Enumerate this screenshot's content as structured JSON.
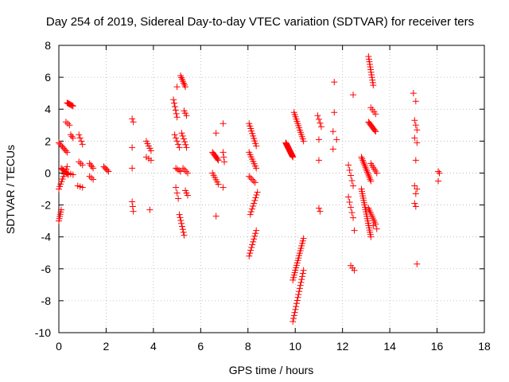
{
  "chart_data": {
    "type": "scatter",
    "title": "Day 254 of 2019, Sidereal Day-to-day VTEC variation (SDTVAR) for receiver ters",
    "xlabel": "GPS time / hours",
    "ylabel": "SDTVAR / TECUs",
    "xlim": [
      0,
      18
    ],
    "ylim": [
      -10,
      8
    ],
    "xticks": [
      0,
      2,
      4,
      6,
      8,
      10,
      12,
      14,
      16,
      18
    ],
    "yticks": [
      -10,
      -8,
      -6,
      -4,
      -2,
      0,
      2,
      4,
      6,
      8
    ],
    "grid": true,
    "marker": "plus",
    "series": [
      {
        "name": "SDTVAR",
        "color": "#ff0000",
        "segments": [
          {
            "x": [
              0.0,
              0.1
            ],
            "y": [
              -3.0,
              -2.3
            ],
            "n": 6
          },
          {
            "x": [
              0.0,
              0.35
            ],
            "y": [
              -1.0,
              0.4
            ],
            "n": 10
          },
          {
            "x": [
              0.0,
              0.35
            ],
            "y": [
              1.9,
              1.3
            ],
            "n": 8
          },
          {
            "x": [
              0.1,
              0.4
            ],
            "y": [
              0.3,
              -0.1
            ],
            "n": 8
          },
          {
            "x": [
              0.3,
              0.45
            ],
            "y": [
              3.2,
              3.0
            ],
            "n": 3
          },
          {
            "x": [
              0.35,
              0.6
            ],
            "y": [
              4.4,
              4.2
            ],
            "n": 8
          },
          {
            "x": [
              0.5,
              0.6
            ],
            "y": [
              2.4,
              2.2
            ],
            "n": 3
          },
          {
            "x": [
              0.4,
              0.6
            ],
            "y": [
              0.0,
              -0.1
            ],
            "n": 3
          },
          {
            "x": [
              0.8,
              1.0
            ],
            "y": [
              -0.8,
              -0.9
            ],
            "n": 3
          },
          {
            "x": [
              0.85,
              1.0
            ],
            "y": [
              0.7,
              0.5
            ],
            "n": 3
          },
          {
            "x": [
              0.85,
              1.0
            ],
            "y": [
              2.4,
              1.8
            ],
            "n": 4
          },
          {
            "x": [
              1.3,
              1.45
            ],
            "y": [
              0.6,
              0.3
            ],
            "n": 4
          },
          {
            "x": [
              1.3,
              1.45
            ],
            "y": [
              -0.2,
              -0.4
            ],
            "n": 3
          },
          {
            "x": [
              1.9,
              2.1
            ],
            "y": [
              0.4,
              0.1
            ],
            "n": 5
          },
          {
            "x": [
              3.1,
              3.15
            ],
            "y": [
              3.4,
              3.2
            ],
            "n": 2
          },
          {
            "x": [
              3.1,
              3.1
            ],
            "y": [
              1.6,
              1.6
            ],
            "n": 1
          },
          {
            "x": [
              3.1,
              3.1
            ],
            "y": [
              0.3,
              0.3
            ],
            "n": 1
          },
          {
            "x": [
              3.1,
              3.15
            ],
            "y": [
              -1.8,
              -2.4
            ],
            "n": 3
          },
          {
            "x": [
              3.7,
              3.9
            ],
            "y": [
              2.0,
              1.4
            ],
            "n": 5
          },
          {
            "x": [
              3.7,
              3.9
            ],
            "y": [
              1.0,
              0.8
            ],
            "n": 3
          },
          {
            "x": [
              3.85,
              3.85
            ],
            "y": [
              -2.3,
              -2.3
            ],
            "n": 1
          },
          {
            "x": [
              4.85,
              5.0
            ],
            "y": [
              4.6,
              3.5
            ],
            "n": 6
          },
          {
            "x": [
              4.9,
              5.1
            ],
            "y": [
              2.4,
              1.6
            ],
            "n": 5
          },
          {
            "x": [
              4.95,
              5.15
            ],
            "y": [
              0.3,
              0.1
            ],
            "n": 4
          },
          {
            "x": [
              4.95,
              5.05
            ],
            "y": [
              -0.9,
              -1.6
            ],
            "n": 3
          },
          {
            "x": [
              5.0,
              5.0
            ],
            "y": [
              5.4,
              5.4
            ],
            "n": 1
          },
          {
            "x": [
              5.15,
              5.35
            ],
            "y": [
              6.1,
              5.4
            ],
            "n": 7
          },
          {
            "x": [
              5.2,
              5.4
            ],
            "y": [
              2.5,
              1.6
            ],
            "n": 6
          },
          {
            "x": [
              5.25,
              5.45
            ],
            "y": [
              0.3,
              0.0
            ],
            "n": 4
          },
          {
            "x": [
              5.3,
              5.4
            ],
            "y": [
              3.9,
              3.6
            ],
            "n": 3
          },
          {
            "x": [
              5.1,
              5.3
            ],
            "y": [
              -2.6,
              -3.9
            ],
            "n": 8
          },
          {
            "x": [
              5.35,
              5.45
            ],
            "y": [
              -1.1,
              -1.4
            ],
            "n": 3
          },
          {
            "x": [
              6.5,
              6.75
            ],
            "y": [
              1.3,
              0.8
            ],
            "n": 8
          },
          {
            "x": [
              6.5,
              6.75
            ],
            "y": [
              0.0,
              -0.7
            ],
            "n": 6
          },
          {
            "x": [
              6.65,
              6.65
            ],
            "y": [
              2.5,
              2.5
            ],
            "n": 1
          },
          {
            "x": [
              6.65,
              6.65
            ],
            "y": [
              -2.7,
              -2.7
            ],
            "n": 1
          },
          {
            "x": [
              6.95,
              7.0
            ],
            "y": [
              3.1,
              3.1
            ],
            "n": 1
          },
          {
            "x": [
              6.95,
              7.0
            ],
            "y": [
              1.3,
              0.7
            ],
            "n": 3
          },
          {
            "x": [
              6.95,
              6.95
            ],
            "y": [
              -0.9,
              -0.9
            ],
            "n": 1
          },
          {
            "x": [
              8.05,
              8.35
            ],
            "y": [
              3.1,
              1.7
            ],
            "n": 10
          },
          {
            "x": [
              8.05,
              8.35
            ],
            "y": [
              1.3,
              0.3
            ],
            "n": 8
          },
          {
            "x": [
              8.05,
              8.3
            ],
            "y": [
              -0.2,
              -0.6
            ],
            "n": 5
          },
          {
            "x": [
              8.1,
              8.4
            ],
            "y": [
              -2.6,
              -1.2
            ],
            "n": 9
          },
          {
            "x": [
              8.05,
              8.35
            ],
            "y": [
              -5.2,
              -3.6
            ],
            "n": 10
          },
          {
            "x": [
              9.6,
              9.9
            ],
            "y": [
              1.9,
              1.0
            ],
            "n": 25
          },
          {
            "x": [
              9.95,
              10.35
            ],
            "y": [
              3.8,
              2.0
            ],
            "n": 14
          },
          {
            "x": [
              9.9,
              10.35
            ],
            "y": [
              -6.7,
              -4.1
            ],
            "n": 18
          },
          {
            "x": [
              9.9,
              10.35
            ],
            "y": [
              -9.3,
              -6.1
            ],
            "n": 18
          },
          {
            "x": [
              10.95,
              11.1
            ],
            "y": [
              3.6,
              2.9
            ],
            "n": 4
          },
          {
            "x": [
              11.0,
              11.05
            ],
            "y": [
              2.1,
              2.1
            ],
            "n": 1
          },
          {
            "x": [
              11.0,
              11.05
            ],
            "y": [
              0.8,
              0.8
            ],
            "n": 1
          },
          {
            "x": [
              11.0,
              11.05
            ],
            "y": [
              -2.2,
              -2.4
            ],
            "n": 2
          },
          {
            "x": [
              11.65,
              11.7
            ],
            "y": [
              5.7,
              5.7
            ],
            "n": 1
          },
          {
            "x": [
              11.65,
              11.7
            ],
            "y": [
              3.8,
              3.8
            ],
            "n": 1
          },
          {
            "x": [
              11.6,
              11.75
            ],
            "y": [
              2.6,
              2.1
            ],
            "n": 2
          },
          {
            "x": [
              11.6,
              11.75
            ],
            "y": [
              1.5,
              1.5
            ],
            "n": 1
          },
          {
            "x": [
              12.25,
              12.45
            ],
            "y": [
              0.5,
              -0.8
            ],
            "n": 5
          },
          {
            "x": [
              12.25,
              12.45
            ],
            "y": [
              -1.5,
              -2.8
            ],
            "n": 5
          },
          {
            "x": [
              12.35,
              12.5
            ],
            "y": [
              -5.8,
              -6.1
            ],
            "n": 3
          },
          {
            "x": [
              12.45,
              12.5
            ],
            "y": [
              4.9,
              4.9
            ],
            "n": 1
          },
          {
            "x": [
              12.5,
              12.55
            ],
            "y": [
              -3.6,
              -3.6
            ],
            "n": 1
          },
          {
            "x": [
              12.8,
              13.2
            ],
            "y": [
              1.0,
              -0.5
            ],
            "n": 15
          },
          {
            "x": [
              12.8,
              13.2
            ],
            "y": [
              -1.0,
              -4.0
            ],
            "n": 22
          },
          {
            "x": [
              13.1,
              13.3
            ],
            "y": [
              7.3,
              5.5
            ],
            "n": 12
          },
          {
            "x": [
              13.1,
              13.4
            ],
            "y": [
              3.2,
              2.6
            ],
            "n": 10
          },
          {
            "x": [
              13.2,
              13.4
            ],
            "y": [
              4.1,
              3.7
            ],
            "n": 4
          },
          {
            "x": [
              13.1,
              13.4
            ],
            "y": [
              -2.2,
              -3.2
            ],
            "n": 9
          },
          {
            "x": [
              13.2,
              13.45
            ],
            "y": [
              0.6,
              0.0
            ],
            "n": 6
          },
          {
            "x": [
              13.3,
              13.45
            ],
            "y": [
              -3.3,
              -3.5
            ],
            "n": 2
          },
          {
            "x": [
              15.0,
              15.1
            ],
            "y": [
              5.0,
              4.5
            ],
            "n": 2
          },
          {
            "x": [
              15.05,
              15.15
            ],
            "y": [
              3.3,
              2.7
            ],
            "n": 3
          },
          {
            "x": [
              15.05,
              15.15
            ],
            "y": [
              2.2,
              1.9
            ],
            "n": 2
          },
          {
            "x": [
              15.1,
              15.1
            ],
            "y": [
              0.8,
              0.8
            ],
            "n": 1
          },
          {
            "x": [
              15.05,
              15.15
            ],
            "y": [
              -0.8,
              -1.0
            ],
            "n": 2
          },
          {
            "x": [
              15.1,
              15.15
            ],
            "y": [
              -1.3,
              -1.3
            ],
            "n": 1
          },
          {
            "x": [
              15.05,
              15.1
            ],
            "y": [
              -1.9,
              -2.1
            ],
            "n": 2
          },
          {
            "x": [
              15.15,
              15.15
            ],
            "y": [
              -5.7,
              -5.7
            ],
            "n": 1
          },
          {
            "x": [
              16.05,
              16.1
            ],
            "y": [
              0.1,
              0.0
            ],
            "n": 2
          },
          {
            "x": [
              16.05,
              16.1
            ],
            "y": [
              -0.5,
              -0.5
            ],
            "n": 1
          }
        ]
      }
    ]
  }
}
